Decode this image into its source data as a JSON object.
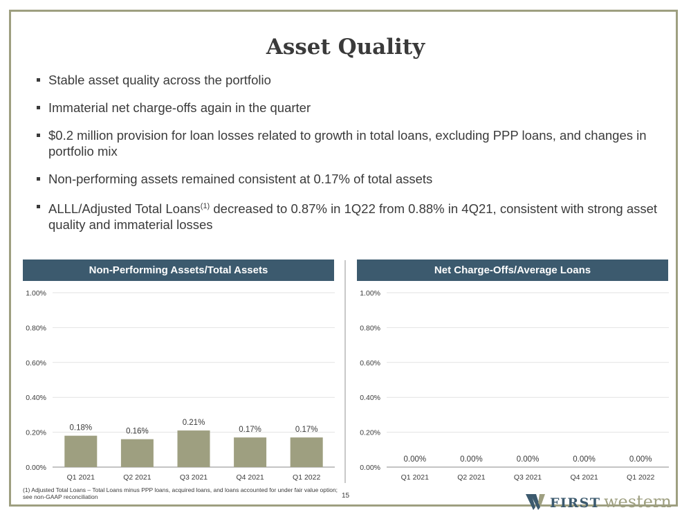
{
  "title": "Asset Quality",
  "bullets": [
    {
      "text": "Stable asset quality across the portfolio"
    },
    {
      "text": "Immaterial net charge-offs again in the quarter"
    },
    {
      "text": "$0.2 million provision for loan losses related to growth in total loans, excluding PPP loans, and changes in portfolio mix"
    },
    {
      "text": "Non-performing assets remained consistent at 0.17% of total assets"
    },
    {
      "text_before": "ALLL/Adjusted Total Loans",
      "sup": "(1)",
      "text_after": " decreased to 0.87% in 1Q22 from 0.88% in 4Q21, consistent with strong asset quality and immaterial losses"
    }
  ],
  "chart_data": [
    {
      "type": "bar",
      "title": "Non-Performing Assets/Total Assets",
      "categories": [
        "Q1 2021",
        "Q2 2021",
        "Q3 2021",
        "Q4 2021",
        "Q1 2022"
      ],
      "values": [
        0.18,
        0.16,
        0.21,
        0.17,
        0.17
      ],
      "value_labels": [
        "0.18%",
        "0.16%",
        "0.21%",
        "0.17%",
        "0.17%"
      ],
      "ylim": [
        0,
        1.0
      ],
      "yticks": [
        0,
        0.2,
        0.4,
        0.6,
        0.8,
        1.0
      ],
      "ytick_labels": [
        "0.00%",
        "0.20%",
        "0.40%",
        "0.60%",
        "0.80%",
        "1.00%"
      ],
      "bar_color": "#9e9f80",
      "grid": true
    },
    {
      "type": "bar",
      "title": "Net Charge-Offs/Average Loans",
      "categories": [
        "Q1 2021",
        "Q2 2021",
        "Q3 2021",
        "Q4 2021",
        "Q1 2022"
      ],
      "values": [
        0,
        0,
        0,
        0,
        0
      ],
      "value_labels": [
        "0.00%",
        "0.00%",
        "0.00%",
        "0.00%",
        "0.00%"
      ],
      "ylim": [
        0,
        1.0
      ],
      "yticks": [
        0,
        0.2,
        0.4,
        0.6,
        0.8,
        1.0
      ],
      "ytick_labels": [
        "0.00%",
        "0.20%",
        "0.40%",
        "0.60%",
        "0.80%",
        "1.00%"
      ],
      "bar_color": "#9e9f80",
      "grid": true
    }
  ],
  "footnote": "(1) Adjusted Total Loans – Total Loans minus PPP loans, acquired loans, and loans accounted for under fair value option; see non-GAAP reconciliation",
  "page_number": "15",
  "logo": {
    "first": "FIRST",
    "second": "western",
    "color_dark": "#3c5a6e",
    "color_light": "#9e9f80"
  },
  "colors": {
    "header_bg": "#3c5a6e",
    "frame": "#9e9f80",
    "bar": "#9e9f80"
  }
}
